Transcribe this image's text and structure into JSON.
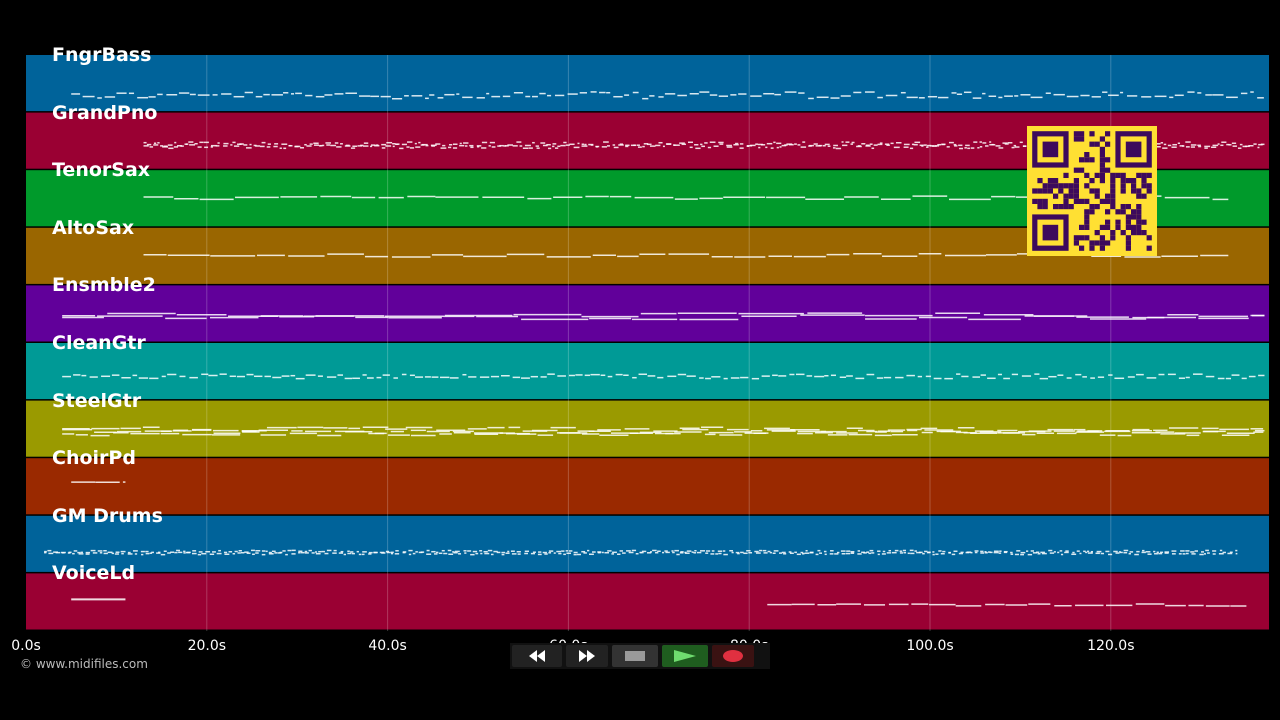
{
  "tracks": [
    {
      "name": "FngrBass",
      "color": "#00639a"
    },
    {
      "name": "GrandPno",
      "color": "#9a0033"
    },
    {
      "name": "TenorSax",
      "color": "#009a2b"
    },
    {
      "name": "AltoSax",
      "color": "#9a6600"
    },
    {
      "name": "Ensmble2",
      "color": "#61009a"
    },
    {
      "name": "CleanGtr",
      "color": "#009a96"
    },
    {
      "name": "SteelGtr",
      "color": "#9a9a00"
    },
    {
      "name": "ChoirPd",
      "color": "#9a2900"
    },
    {
      "name": "GM Drums",
      "color": "#00639a"
    },
    {
      "name": "VoiceLd",
      "color": "#9a0033"
    }
  ],
  "time_ticks": [
    {
      "value": 0,
      "label": "0.0s"
    },
    {
      "value": 20,
      "label": "20.0s"
    },
    {
      "value": 40,
      "label": "40.0s"
    },
    {
      "value": 60,
      "label": "60.0s"
    },
    {
      "value": 80,
      "label": "80.0s"
    },
    {
      "value": 100,
      "label": "100.0s"
    },
    {
      "value": 120,
      "label": "120.0s"
    }
  ],
  "duration_max": 137.5,
  "copyright": "© www.midifiles.com",
  "transport": {
    "rewind_icon": "rewind-icon",
    "fast_forward_icon": "fast-forward-icon",
    "stop_icon": "stop-icon",
    "play_icon": "play-icon",
    "record_icon": "record-icon"
  },
  "qr_color": "#ffe033",
  "qr_dark": "#3d0a5c"
}
